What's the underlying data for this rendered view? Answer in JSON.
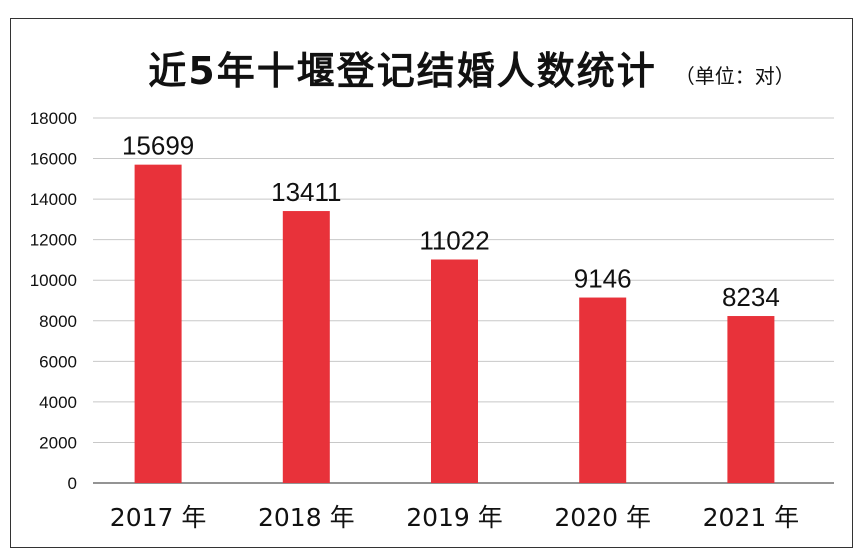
{
  "chart_data": {
    "type": "bar",
    "title": "近5年十堰登记结婚人数统计",
    "subtitle": "（单位：对）",
    "categories": [
      "2017 年",
      "2018 年",
      "2019 年",
      "2020 年",
      "2021 年"
    ],
    "values": [
      15699,
      13411,
      11022,
      9146,
      8234
    ],
    "ylim": [
      0,
      18000
    ],
    "yticks": [
      0,
      2000,
      4000,
      6000,
      8000,
      10000,
      12000,
      14000,
      16000,
      18000
    ],
    "grid": true,
    "legend": "none",
    "colors": {
      "bar": "#e8323a",
      "grid": "#c8c8c8",
      "text": "#111111"
    }
  }
}
